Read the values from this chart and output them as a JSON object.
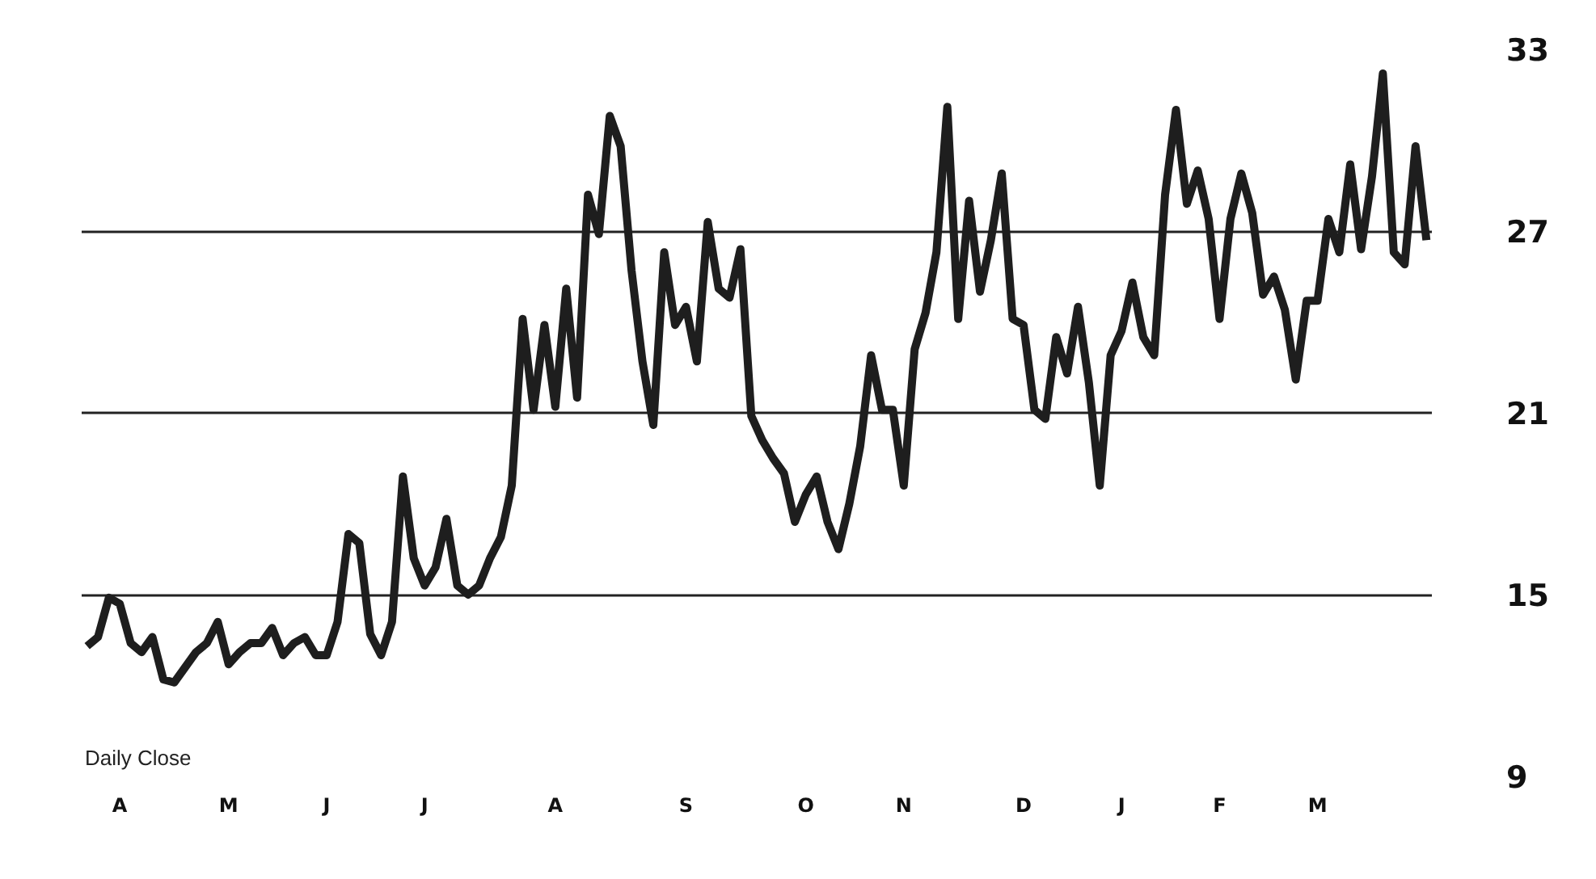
{
  "chart_data": {
    "type": "line",
    "categories": [
      null,
      null,
      null,
      "A",
      null,
      null,
      null,
      null,
      null,
      null,
      null,
      null,
      null,
      "M",
      null,
      null,
      null,
      null,
      null,
      null,
      null,
      null,
      "J",
      null,
      null,
      null,
      null,
      null,
      null,
      null,
      null,
      "J",
      null,
      null,
      null,
      null,
      null,
      null,
      null,
      null,
      null,
      null,
      null,
      "A",
      null,
      null,
      null,
      null,
      null,
      null,
      null,
      null,
      null,
      null,
      null,
      "S",
      null,
      null,
      null,
      null,
      null,
      null,
      null,
      null,
      null,
      null,
      "O",
      null,
      null,
      null,
      null,
      null,
      null,
      null,
      null,
      "N",
      null,
      null,
      null,
      null,
      null,
      null,
      null,
      null,
      null,
      null,
      "D",
      null,
      null,
      null,
      null,
      null,
      null,
      null,
      null,
      "J",
      null,
      null,
      null,
      null,
      null,
      null,
      null,
      null,
      "F",
      null,
      null,
      null,
      null,
      null,
      null,
      null,
      null,
      "M",
      null,
      null,
      null,
      null,
      null,
      null,
      null,
      null,
      null,
      null
    ],
    "series": [
      {
        "color": "#1e1e1e",
        "values": [
          13.3,
          13.6,
          14.9,
          14.7,
          13.4,
          13.1,
          13.6,
          12.2,
          12.1,
          12.6,
          13.1,
          13.4,
          14.1,
          12.7,
          13.1,
          13.4,
          13.4,
          13.9,
          13.0,
          13.4,
          13.6,
          13.0,
          13.0,
          14.1,
          17.0,
          16.7,
          13.7,
          13.0,
          14.1,
          18.9,
          16.2,
          15.3,
          15.9,
          17.5,
          15.3,
          15.0,
          15.3,
          16.2,
          16.9,
          18.6,
          24.1,
          21.1,
          23.9,
          21.2,
          25.1,
          21.5,
          28.2,
          26.9,
          30.8,
          29.8,
          25.7,
          22.7,
          20.6,
          26.3,
          23.9,
          24.5,
          22.7,
          27.3,
          25.1,
          24.8,
          26.4,
          20.9,
          20.1,
          19.5,
          19.0,
          17.4,
          18.3,
          18.9,
          17.4,
          16.5,
          18.0,
          19.9,
          22.9,
          21.1,
          21.1,
          18.6,
          23.1,
          24.3,
          26.3,
          31.1,
          24.1,
          28.0,
          25.0,
          26.7,
          28.9,
          24.1,
          23.9,
          21.1,
          20.8,
          23.5,
          22.3,
          24.5,
          22.0,
          18.6,
          22.9,
          23.7,
          25.3,
          23.5,
          22.9,
          28.2,
          31.0,
          27.9,
          29.0,
          27.4,
          24.1,
          27.4,
          28.9,
          27.6,
          24.9,
          25.5,
          24.4,
          22.1,
          24.7,
          24.7,
          27.4,
          26.3,
          29.2,
          26.4,
          28.8,
          32.2,
          26.3,
          25.9,
          29.8,
          26.7
        ]
      }
    ],
    "ylim": [
      9,
      33
    ],
    "yticks": [
      9,
      15,
      21,
      27,
      33
    ],
    "grid": "y",
    "annotations": [
      "Daily Close"
    ]
  }
}
